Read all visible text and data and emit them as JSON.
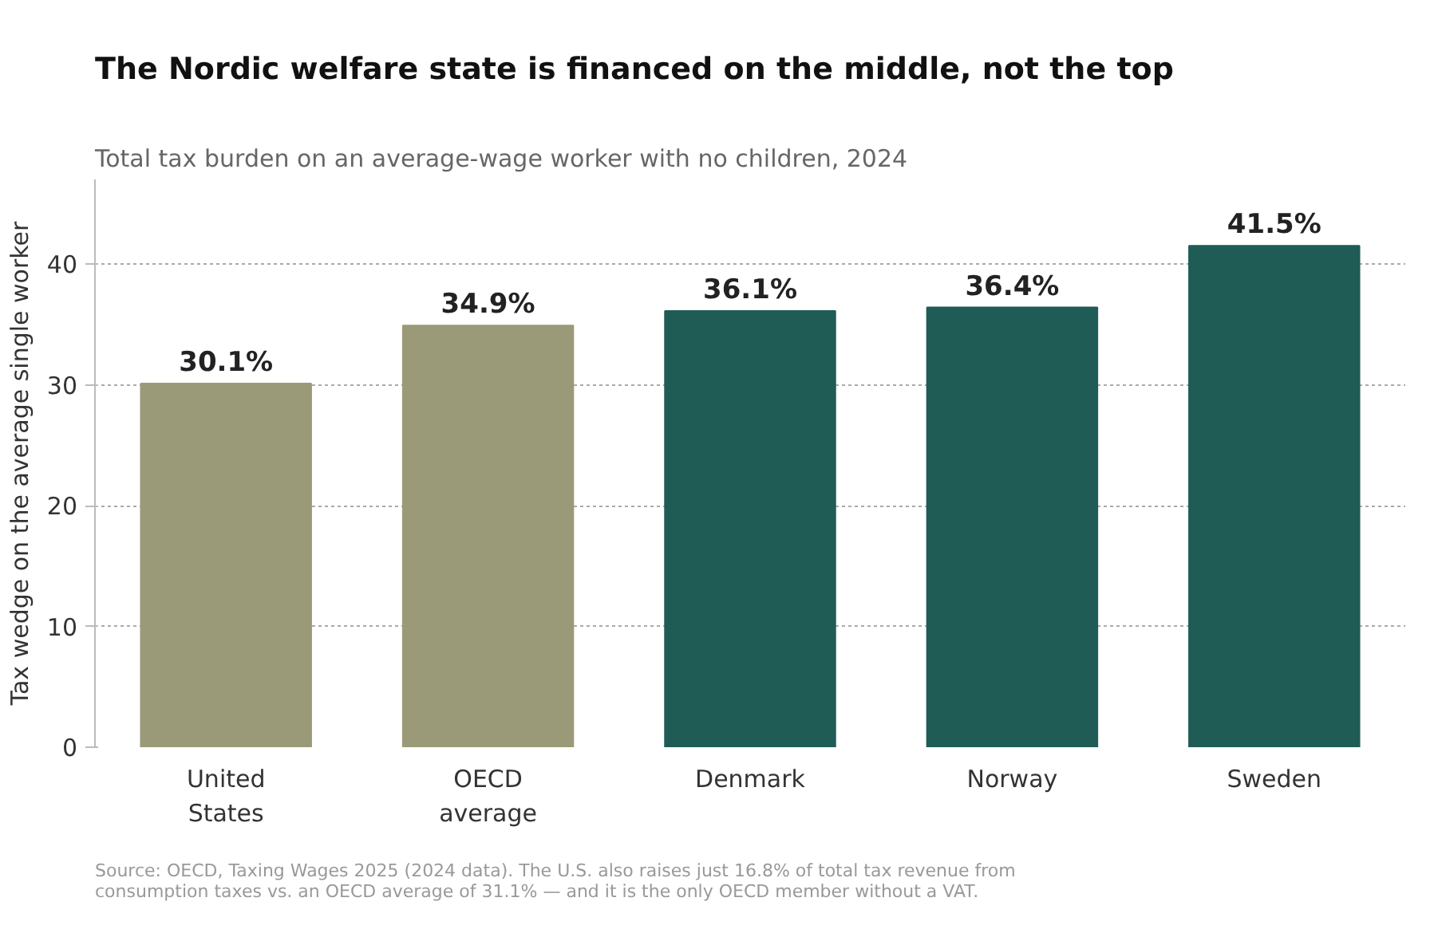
{
  "chart_data": {
    "type": "bar",
    "title": "The Nordic welfare state is financed on the middle, not the top",
    "subtitle": "Total tax burden on an average-wage worker with no children, 2024",
    "ylabel": "Tax wedge on the average single worker",
    "categories": [
      "United States",
      "OECD average",
      "Denmark",
      "Norway",
      "Sweden"
    ],
    "values": [
      30.1,
      34.9,
      36.1,
      36.4,
      41.5
    ],
    "value_labels": [
      "30.1%",
      "34.9%",
      "36.1%",
      "36.4%",
      "41.5%"
    ],
    "colors": [
      "#9a9a78",
      "#9a9a78",
      "#1f5c55",
      "#1f5c55",
      "#1f5c55"
    ],
    "ylim": [
      0,
      47
    ],
    "yticks": [
      0,
      10,
      20,
      30,
      40
    ],
    "grid": "y",
    "annotations": [
      "Source: OECD, Taxing Wages 2025 (2024 data). The U.S. also raises just 16.8% of total tax revenue from consumption taxes vs. an OECD average of 31.1% — and it is the only OECD member without a VAT."
    ]
  }
}
